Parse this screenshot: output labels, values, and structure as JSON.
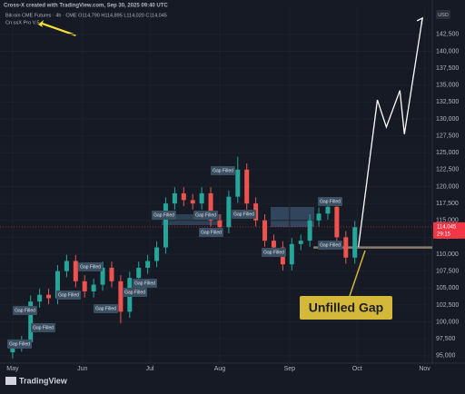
{
  "header": {
    "credit": "Cross-X created with TradingView.com, Sep 30, 2025 09:40 UTC",
    "symbol": "Bitcoin CME Futures · 4h · CME  O114,790 H114,895 L114,020 C114,045",
    "indicator": "CrossX Pro V.5",
    "currency": "USD",
    "brand": "TradingView"
  },
  "chart_data": {
    "type": "candlestick",
    "categories": [
      null,
      null,
      null,
      null,
      null,
      null,
      null,
      null,
      null,
      null,
      null,
      null,
      null,
      null,
      null,
      null,
      null,
      null,
      null,
      null,
      null,
      null,
      null,
      null,
      null,
      null,
      null,
      null,
      null,
      null,
      null,
      null,
      null,
      null,
      null,
      null,
      null,
      null,
      null
    ],
    "series": [
      {
        "up_color": "#26a69a",
        "down_color": "#ef5350",
        "open": [
          95500,
          96500,
          97000,
          103000,
          104000,
          103500,
          107500,
          109000,
          106000,
          104500,
          105500,
          108000,
          106000,
          101500,
          106500,
          108000,
          109000,
          111000,
          117500,
          119000,
          118000,
          117500,
          119000,
          115000,
          114000,
          118500,
          122500,
          117500,
          115000,
          112000,
          111000,
          108500,
          111500,
          112000,
          115000,
          116000,
          117000,
          112500,
          109500
        ],
        "high": [
          97400,
          97900,
          103900,
          104900,
          104900,
          108400,
          109900,
          109900,
          106900,
          106400,
          108900,
          108900,
          106900,
          107400,
          108900,
          109900,
          111900,
          118400,
          119900,
          119900,
          118900,
          119900,
          119900,
          115900,
          119400,
          124400,
          123400,
          118400,
          115900,
          112900,
          111900,
          112400,
          112900,
          115900,
          116900,
          117900,
          117900,
          113400,
          114900
        ],
        "low": [
          94600,
          95600,
          96100,
          102100,
          102600,
          102600,
          106600,
          105100,
          103600,
          103600,
          104600,
          105100,
          99800,
          100600,
          105600,
          107100,
          108100,
          110100,
          116600,
          117100,
          116600,
          116600,
          114100,
          113100,
          113100,
          117600,
          116600,
          114100,
          111100,
          110100,
          107600,
          107600,
          110600,
          111100,
          114100,
          115100,
          111600,
          108600,
          108600
        ],
        "close": [
          96500,
          97000,
          103000,
          104000,
          103500,
          107500,
          109000,
          106000,
          104500,
          105500,
          108000,
          106000,
          101500,
          106500,
          108000,
          109000,
          111000,
          117500,
          119000,
          118000,
          117500,
          119000,
          115000,
          114000,
          118500,
          122500,
          117500,
          115000,
          112000,
          111000,
          108500,
          111500,
          112000,
          115000,
          116000,
          117000,
          112500,
          109500,
          114000
        ]
      }
    ],
    "xlim": [
      -1.4,
      46.6
    ],
    "xticks": [
      {
        "value": 0,
        "label": "May"
      },
      {
        "value": 7.75,
        "label": "Jun"
      },
      {
        "value": 15.25,
        "label": "Jul"
      },
      {
        "value": 23,
        "label": "Aug"
      },
      {
        "value": 30.75,
        "label": "Sep"
      },
      {
        "value": 38.25,
        "label": "Oct"
      },
      {
        "value": 45.75,
        "label": "Nov"
      }
    ],
    "ylim": [
      93900,
      146500
    ],
    "yticks": [
      {
        "value": 95000,
        "label": "95,000"
      },
      {
        "value": 97500,
        "label": "97,500"
      },
      {
        "value": 100000,
        "label": "100,000"
      },
      {
        "value": 102500,
        "label": "102,500"
      },
      {
        "value": 105000,
        "label": "105,000"
      },
      {
        "value": 107500,
        "label": "107,500"
      },
      {
        "value": 110000,
        "label": "110,000"
      },
      {
        "value": 112500,
        "label": "112,500"
      },
      {
        "value": 115000,
        "label": "115,000"
      },
      {
        "value": 117500,
        "label": "117,500"
      },
      {
        "value": 120000,
        "label": "120,000"
      },
      {
        "value": 122500,
        "label": "122,500"
      },
      {
        "value": 125000,
        "label": "125,000"
      },
      {
        "value": 127500,
        "label": "127,500"
      },
      {
        "value": 130000,
        "label": "130,000"
      },
      {
        "value": 132500,
        "label": "132,500"
      },
      {
        "value": 135000,
        "label": "135,000"
      },
      {
        "value": 137500,
        "label": "137,500"
      },
      {
        "value": 140000,
        "label": "140,000"
      },
      {
        "value": 142500,
        "label": "142,500"
      }
    ],
    "projection": {
      "color": "#ffffff",
      "x": [
        38.4,
        40.5,
        41.5,
        43,
        43.5,
        45.5
      ],
      "values": [
        111100,
        132800,
        128800,
        134200,
        127750,
        144900
      ]
    },
    "gap": {
      "value": 111000,
      "label": "Unfilled Gap",
      "color": "#8b7d6b"
    },
    "last_price": {
      "value": 114045,
      "label": "114,045",
      "countdown": "29:15",
      "color": "#f23645"
    },
    "annotations": [
      "Gap Filled",
      "Gap Filled",
      "Gap Filled",
      "Gap Filled",
      "Gap Filled",
      "Gap Filled",
      "Gap Filled",
      "Gap Filled",
      "Gap Filled",
      "Gap Filled",
      "Gap Filled",
      "Gap Filled",
      "Gap Filled",
      "Gap Filled",
      "Gap Filled",
      "Gap Filled"
    ]
  }
}
